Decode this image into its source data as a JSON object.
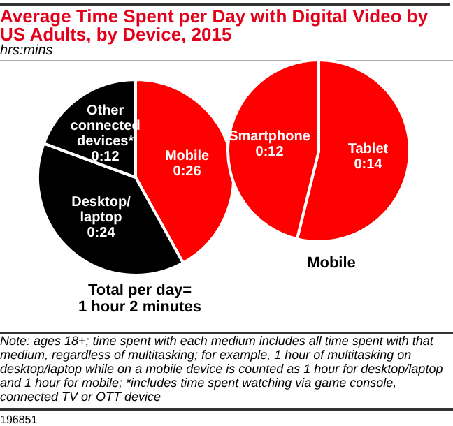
{
  "chart_data": [
    {
      "type": "pie",
      "title": "Average Time Spent per Day with Digital Video by US Adults, by Device, 2015",
      "subtitle": "hrs:mins",
      "categories": [
        "Mobile",
        "Desktop/\nlaptop",
        "Other\nconnected\ndevices*"
      ],
      "values": [
        26,
        24,
        12
      ],
      "value_labels": [
        "0:26",
        "0:24",
        "0:12"
      ],
      "colors": [
        "#ff0000",
        "#000000",
        "#000000"
      ],
      "annotations": [
        "Total per day=\n1 hour 2 minutes",
        "Note: ages 18+; time spent with each medium includes all time spent with that medium, regardless of multitasking; for example, 1 hour of multitasking on desktop/laptop while on a mobile device is counted as 1 hour for desktop/laptop and 1 hour for mobile; *includes time spent watching via game console, connected TV or OTT device",
        "196851"
      ]
    },
    {
      "type": "pie",
      "title": "Mobile",
      "categories": [
        "Tablet",
        "Smartphone"
      ],
      "values": [
        14,
        12
      ],
      "value_labels": [
        "0:14",
        "0:12"
      ],
      "colors": [
        "#ff0000",
        "#ff0000"
      ]
    }
  ]
}
